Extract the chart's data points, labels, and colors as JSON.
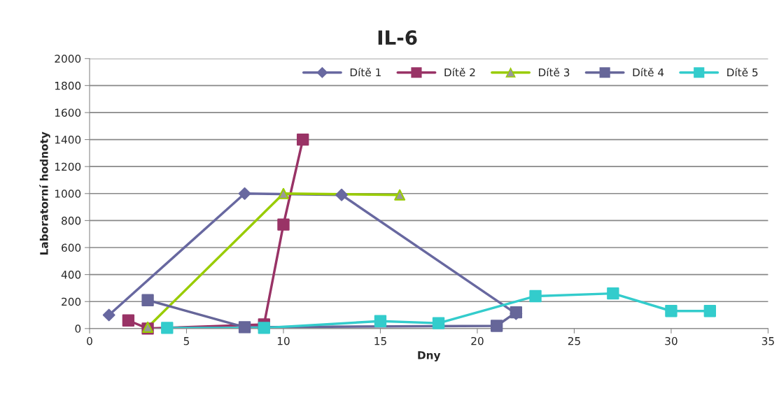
{
  "chart_data": {
    "type": "line",
    "title": "IL-6",
    "xlabel": "Dny",
    "ylabel": "Laboratorní hodnoty",
    "xlim": [
      0,
      35
    ],
    "xticks": [
      0,
      5,
      10,
      15,
      20,
      25,
      30,
      35
    ],
    "ylim": [
      0,
      2000
    ],
    "yticks": [
      0,
      200,
      400,
      600,
      800,
      1000,
      1200,
      1400,
      1600,
      1800,
      2000
    ],
    "grid": "y",
    "legend": "top right",
    "series": [
      {
        "name": "Dítě 1",
        "color": "#6868a0",
        "marker": "diamond",
        "x": [
          1,
          8,
          13,
          22
        ],
        "values": [
          100,
          1000,
          990,
          110
        ]
      },
      {
        "name": "Dítě 2",
        "color": "#993366",
        "marker": "square",
        "x": [
          2,
          3,
          9,
          10,
          11
        ],
        "values": [
          60,
          0,
          30,
          770,
          1400
        ]
      },
      {
        "name": "Dítě 3",
        "color": "#99cc00",
        "marker": "triangle",
        "x": [
          3,
          10,
          16
        ],
        "values": [
          10,
          1000,
          990
        ]
      },
      {
        "name": "Dítě 4",
        "color": "#666699",
        "marker": "square",
        "x": [
          3,
          8,
          21,
          22
        ],
        "values": [
          210,
          10,
          20,
          120
        ]
      },
      {
        "name": "Dítě 5",
        "color": "#33cccc",
        "marker": "square",
        "x": [
          4,
          9,
          15,
          18,
          23,
          27,
          30,
          32
        ],
        "values": [
          5,
          5,
          55,
          40,
          240,
          260,
          130,
          130
        ]
      }
    ]
  }
}
